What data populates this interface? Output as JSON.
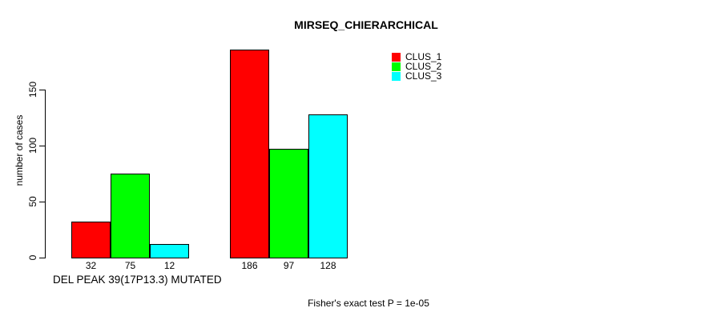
{
  "chart_data": {
    "type": "bar",
    "title": "MIRSEQ_CHIERARCHICAL",
    "ylabel": "number of cases",
    "xlabel": "DEL PEAK 39(17P13.3) MUTATED",
    "annotation": "Fisher's exact test P = 1e-05",
    "yticks": [
      0,
      50,
      100,
      150
    ],
    "ylim": [
      0,
      190
    ],
    "grid": false,
    "legend_position": "top-right",
    "groups": [
      "group-1",
      "group-2"
    ],
    "series": [
      {
        "name": "CLUS_1",
        "color": "#ff0000",
        "values": [
          32,
          186
        ]
      },
      {
        "name": "CLUS_2",
        "color": "#00ff00",
        "values": [
          75,
          97
        ]
      },
      {
        "name": "CLUS_3",
        "color": "#00ffff",
        "values": [
          12,
          128
        ]
      }
    ],
    "bar_value_labels": [
      [
        32,
        75,
        12
      ],
      [
        186,
        97,
        128
      ]
    ]
  }
}
